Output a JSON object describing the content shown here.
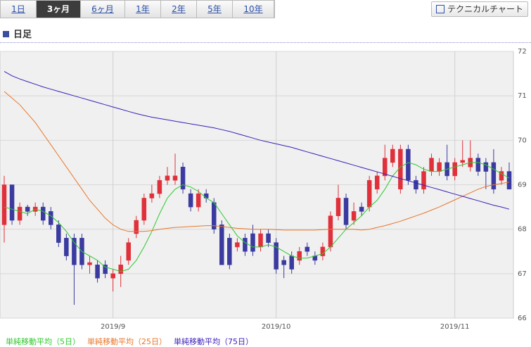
{
  "tabs": {
    "items": [
      "1日",
      "3ヶ月",
      "6ヶ月",
      "1年",
      "2年",
      "5年",
      "10年"
    ],
    "selected": 1
  },
  "button": "テクニカルチャート",
  "section_title": "日足",
  "chart_data": {
    "type": "candlestick",
    "categories": [
      null,
      null,
      null,
      null,
      null,
      null,
      null,
      null,
      null,
      null,
      null,
      null,
      null,
      null,
      "2019/9",
      null,
      null,
      null,
      null,
      null,
      null,
      null,
      null,
      null,
      null,
      null,
      null,
      null,
      null,
      null,
      null,
      null,
      null,
      null,
      null,
      "2019/10",
      null,
      null,
      null,
      null,
      null,
      null,
      null,
      null,
      null,
      null,
      null,
      null,
      null,
      null,
      null,
      null,
      null,
      null,
      null,
      null,
      null,
      null,
      "2019/11",
      null,
      null,
      null,
      null,
      null,
      null,
      null
    ],
    "ylim": [
      66,
      72
    ],
    "yticks": [
      66,
      67,
      68,
      69,
      70,
      71,
      72
    ],
    "grid": true,
    "up_color": "#e0303a",
    "down_color": "#3a3aa0",
    "open": [
      68.1,
      69.0,
      68.2,
      68.5,
      68.4,
      68.5,
      68.4,
      68.1,
      67.8,
      67.8,
      67.8,
      67.2,
      67.2,
      67.2,
      66.9,
      67.0,
      67.3,
      67.9,
      68.2,
      68.7,
      68.8,
      69.1,
      69.1,
      69.4,
      68.8,
      68.5,
      68.8,
      68.6,
      68.1,
      67.8,
      67.6,
      67.8,
      67.9,
      67.6,
      67.9,
      67.7,
      67.3,
      67.4,
      67.3,
      67.6,
      67.4,
      67.4,
      67.6,
      68.3,
      68.7,
      68.2,
      68.5,
      68.5,
      68.9,
      69.2,
      69.5,
      68.9,
      69.8,
      69.1,
      68.9,
      69.3,
      69.3,
      69.5,
      69.2,
      69.5,
      69.4,
      69.6,
      69.5,
      69.5,
      69.1,
      69.3
    ],
    "high": [
      69.2,
      69.0,
      68.6,
      68.55,
      68.6,
      68.6,
      68.5,
      68.2,
      67.9,
      67.9,
      67.9,
      67.4,
      67.3,
      67.3,
      67.1,
      67.4,
      67.8,
      68.3,
      68.8,
      69.0,
      69.2,
      69.4,
      69.7,
      69.5,
      68.9,
      68.9,
      68.9,
      68.7,
      68.2,
      67.9,
      67.8,
      67.9,
      68.1,
      68.0,
      68.0,
      67.8,
      67.4,
      67.5,
      67.6,
      67.7,
      67.5,
      67.7,
      68.4,
      69.0,
      68.8,
      68.6,
      68.6,
      69.2,
      69.3,
      69.9,
      69.9,
      69.9,
      69.9,
      69.2,
      69.4,
      69.7,
      69.6,
      69.9,
      69.6,
      70.0,
      70.0,
      69.7,
      69.6,
      69.8,
      69.4,
      69.5
    ],
    "low": [
      67.7,
      68.1,
      68.1,
      68.3,
      68.3,
      68.1,
      68.0,
      67.6,
      67.3,
      66.3,
      67.1,
      67.0,
      66.8,
      66.9,
      66.6,
      66.7,
      67.2,
      67.8,
      68.1,
      68.6,
      68.7,
      69.0,
      69.0,
      68.8,
      68.4,
      68.4,
      68.6,
      67.9,
      67.2,
      67.1,
      67.5,
      67.4,
      67.4,
      67.5,
      67.6,
      67.0,
      66.9,
      67.0,
      67.2,
      67.4,
      67.2,
      67.3,
      67.5,
      68.2,
      68.0,
      68.1,
      68.3,
      68.4,
      68.8,
      69.1,
      69.4,
      68.8,
      69.0,
      68.8,
      68.8,
      69.2,
      69.2,
      69.1,
      69.1,
      69.4,
      69.3,
      69.2,
      68.9,
      68.8,
      69.0,
      68.9
    ],
    "close": [
      69.0,
      68.2,
      68.5,
      68.4,
      68.5,
      68.2,
      68.1,
      67.7,
      67.4,
      67.2,
      67.2,
      67.25,
      66.9,
      67.0,
      67.0,
      67.2,
      67.7,
      68.2,
      68.7,
      68.8,
      69.1,
      69.2,
      69.2,
      68.9,
      68.5,
      68.8,
      68.7,
      68.0,
      67.2,
      67.2,
      67.7,
      67.5,
      67.5,
      67.9,
      67.7,
      67.1,
      67.2,
      67.1,
      67.5,
      67.5,
      67.3,
      67.6,
      68.3,
      68.7,
      68.1,
      68.4,
      68.4,
      69.1,
      69.2,
      69.6,
      69.8,
      69.8,
      69.1,
      68.9,
      69.3,
      69.6,
      69.5,
      69.2,
      69.5,
      69.55,
      69.6,
      69.3,
      69.3,
      68.9,
      69.3,
      68.9
    ],
    "series": [
      {
        "name": "単純移動平均（5日）",
        "color": "#2ec82e",
        "values": [
          68.5,
          68.45,
          68.4,
          68.35,
          68.45,
          68.4,
          68.3,
          68.15,
          67.95,
          67.7,
          67.5,
          67.4,
          67.3,
          67.15,
          67.1,
          67.05,
          67.1,
          67.3,
          67.6,
          67.95,
          68.35,
          68.7,
          68.9,
          69.0,
          68.95,
          68.85,
          68.7,
          68.6,
          68.35,
          68.1,
          67.85,
          67.7,
          67.6,
          67.6,
          67.65,
          67.6,
          67.5,
          67.4,
          67.35,
          67.35,
          67.4,
          67.45,
          67.6,
          67.8,
          68.0,
          68.15,
          68.3,
          68.5,
          68.65,
          68.9,
          69.2,
          69.4,
          69.5,
          69.45,
          69.35,
          69.3,
          69.3,
          69.35,
          69.4,
          69.45,
          69.5,
          69.5,
          69.45,
          69.35,
          69.25,
          69.15
        ]
      },
      {
        "name": "単純移動平均（25日）",
        "color": "#e8762a",
        "values": [
          71.1,
          70.95,
          70.8,
          70.6,
          70.4,
          70.15,
          69.9,
          69.65,
          69.4,
          69.15,
          68.9,
          68.65,
          68.45,
          68.25,
          68.1,
          68.0,
          67.95,
          67.95,
          67.95,
          67.97,
          68.0,
          68.02,
          68.04,
          68.05,
          68.06,
          68.07,
          68.08,
          68.08,
          68.06,
          68.04,
          68.02,
          68.01,
          68.0,
          68.0,
          68.0,
          67.99,
          67.98,
          67.98,
          67.98,
          67.98,
          67.98,
          67.99,
          68.0,
          68.0,
          68.0,
          68.0,
          67.98,
          68.0,
          68.04,
          68.08,
          68.13,
          68.18,
          68.24,
          68.3,
          68.36,
          68.43,
          68.5,
          68.58,
          68.66,
          68.74,
          68.82,
          68.9,
          68.96,
          69.0,
          69.03,
          69.06
        ]
      },
      {
        "name": "単純移動平均（75日）",
        "color": "#3a1fb8",
        "values": [
          71.55,
          71.45,
          71.38,
          71.32,
          71.26,
          71.2,
          71.15,
          71.1,
          71.05,
          71.0,
          70.95,
          70.9,
          70.85,
          70.8,
          70.75,
          70.7,
          70.65,
          70.6,
          70.56,
          70.52,
          70.49,
          70.46,
          70.43,
          70.4,
          70.37,
          70.34,
          70.31,
          70.28,
          70.24,
          70.2,
          70.15,
          70.1,
          70.05,
          70.0,
          69.96,
          69.92,
          69.88,
          69.84,
          69.79,
          69.74,
          69.69,
          69.64,
          69.59,
          69.54,
          69.49,
          69.44,
          69.39,
          69.34,
          69.29,
          69.24,
          69.19,
          69.14,
          69.09,
          69.04,
          68.99,
          68.94,
          68.89,
          68.84,
          68.79,
          68.74,
          68.69,
          68.64,
          68.59,
          68.54,
          68.5,
          68.45
        ]
      }
    ]
  }
}
